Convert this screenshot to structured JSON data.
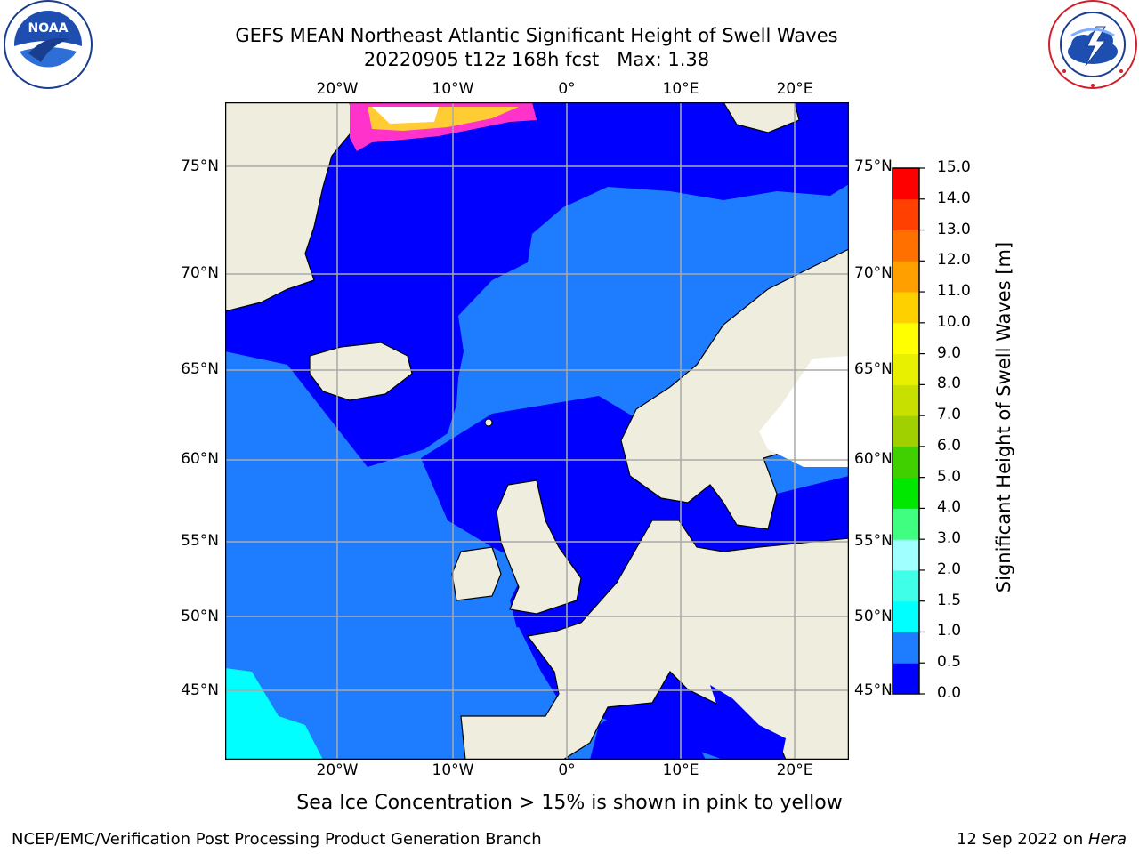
{
  "header": {
    "title_line1": "GEFS MEAN Northeast Atlantic Significant Height of Swell Waves",
    "title_line2": "20220905 t12z 168h fcst   Max: 1.38"
  },
  "logos": {
    "noaa": {
      "text": "NOAA",
      "ring_text": "NATIONAL OCEANIC AND ATMOSPHERIC ADMINISTRATION · U.S. DEPARTMENT OF COMMERCE"
    },
    "nws": {
      "ring_text": "NATIONAL WEATHER SERVICE"
    }
  },
  "map": {
    "lon_ticks": [
      "20°W",
      "10°W",
      "0°",
      "10°E",
      "20°E"
    ],
    "lat_ticks": [
      "75°N",
      "70°N",
      "65°N",
      "60°N",
      "55°N",
      "50°N",
      "45°N"
    ],
    "colors": {
      "land": "#eeedde",
      "ocean_0": "#0000ff",
      "ocean_05": "#1e7dff",
      "ocean_10": "#00ffff",
      "ice_pink": "#ff33cc",
      "ice_yellow": "#ffee33",
      "grid": "#aaaaaa"
    }
  },
  "colorbar": {
    "title": "Significant Height of Swell Waves [m]",
    "labels": [
      "15.0",
      "14.0",
      "13.0",
      "12.0",
      "11.0",
      "10.0",
      "9.0",
      "8.0",
      "7.0",
      "6.0",
      "5.0",
      "4.0",
      "3.0",
      "2.0",
      "1.5",
      "1.0",
      "0.5",
      "0.0"
    ],
    "colors": [
      "#0000ff",
      "#1e7dff",
      "#00ffff",
      "#40ffe8",
      "#a0ffff",
      "#40ff80",
      "#00e800",
      "#40d000",
      "#a0d000",
      "#c8e000",
      "#e8f000",
      "#ffff00",
      "#ffd000",
      "#ffa000",
      "#ff7000",
      "#ff4000",
      "#ff0000"
    ]
  },
  "caption": "Sea Ice Concentration > 15% is shown in pink to yellow",
  "footer": {
    "left": "NCEP/EMC/Verification Post Processing Product Generation Branch",
    "right_prefix": "12 Sep 2022 on ",
    "right_host": "Hera"
  }
}
